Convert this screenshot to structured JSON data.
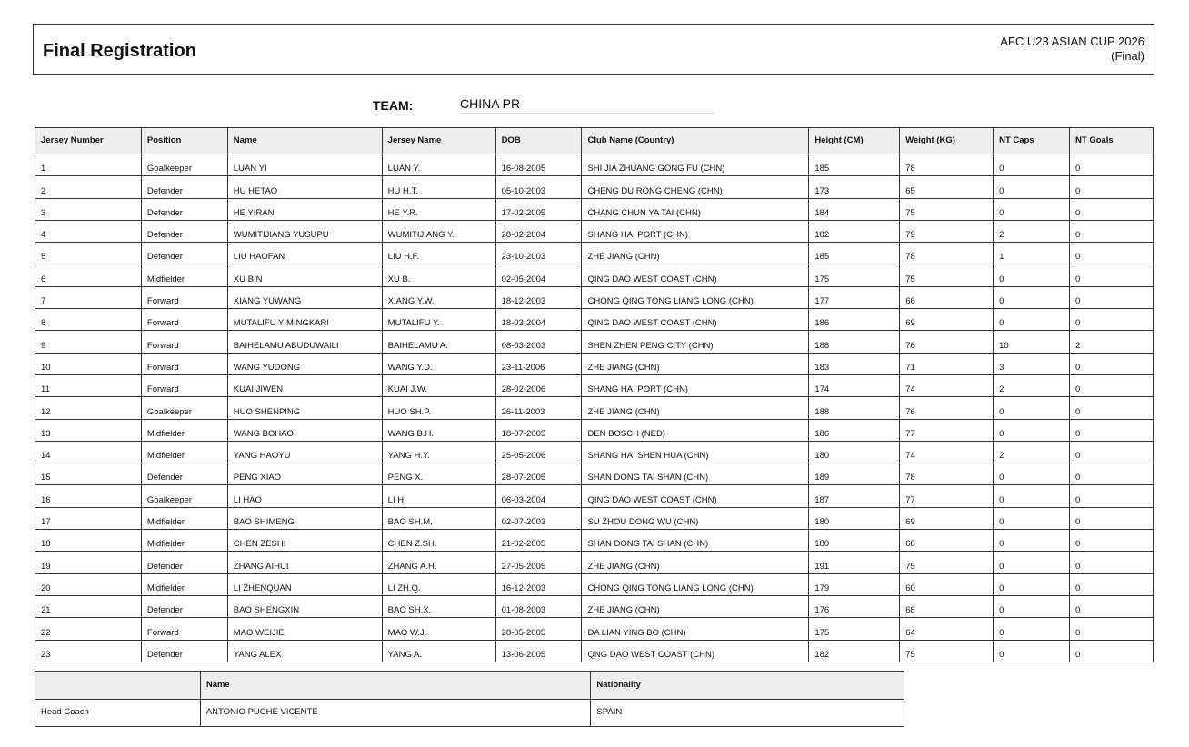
{
  "header": {
    "title": "Final Registration",
    "competition": "AFC U23 ASIAN CUP 2026",
    "stage": "(Final)"
  },
  "team": {
    "label": "TEAM:",
    "value": "CHINA PR"
  },
  "players": {
    "columns": [
      "Jersey Number",
      "Position",
      "Name",
      "Jersey Name",
      "DOB",
      "Club Name (Country)",
      "Height (CM)",
      "Weight (KG)",
      "NT Caps",
      "NT Goals"
    ],
    "rows": [
      [
        "1",
        "Goalkeeper",
        "LUAN YI",
        "LUAN Y.",
        "16-08-2005",
        "SHI JIA ZHUANG GONG FU (CHN)",
        "185",
        "78",
        "0",
        "0"
      ],
      [
        "2",
        "Defender",
        "HU HETAO",
        "HU H.T.",
        "05-10-2003",
        "CHENG DU RONG CHENG (CHN)",
        "173",
        "65",
        "0",
        "0"
      ],
      [
        "3",
        "Defender",
        "HE YIRAN",
        "HE Y.R.",
        "17-02-2005",
        "CHANG CHUN YA TAI (CHN)",
        "184",
        "75",
        "0",
        "0"
      ],
      [
        "4",
        "Defender",
        "WUMITIJIANG YUSUPU",
        "WUMITIJIANG Y.",
        "28-02-2004",
        "SHANG HAI PORT (CHN)",
        "182",
        "79",
        "2",
        "0"
      ],
      [
        "5",
        "Defender",
        "LIU HAOFAN",
        "LIU H.F.",
        "23-10-2003",
        "ZHE JIANG (CHN)",
        "185",
        "78",
        "1",
        "0"
      ],
      [
        "6",
        "Midfielder",
        "XU BIN",
        "XU B.",
        "02-05-2004",
        "QING DAO WEST COAST (CHN)",
        "175",
        "75",
        "0",
        "0"
      ],
      [
        "7",
        "Forward",
        "XIANG YUWANG",
        "XIANG Y.W.",
        "18-12-2003",
        "CHONG QING TONG LIANG LONG (CHN)",
        "177",
        "66",
        "0",
        "0"
      ],
      [
        "8",
        "Forward",
        "MUTALIFU YIMINGKARI",
        "MUTALIFU Y.",
        "18-03-2004",
        "QING DAO WEST COAST (CHN)",
        "186",
        "69",
        "0",
        "0"
      ],
      [
        "9",
        "Forward",
        "BAIHELAMU ABUDUWAILI",
        "BAIHELAMU A.",
        "08-03-2003",
        "SHEN ZHEN PENG CITY (CHN)",
        "188",
        "76",
        "10",
        "2"
      ],
      [
        "10",
        "Forward",
        "WANG YUDONG",
        "WANG Y.D.",
        "23-11-2006",
        "ZHE JIANG (CHN)",
        "183",
        "71",
        "3",
        "0"
      ],
      [
        "11",
        "Forward",
        "KUAI JIWEN",
        "KUAI J.W.",
        "28-02-2006",
        "SHANG HAI PORT (CHN)",
        "174",
        "74",
        "2",
        "0"
      ],
      [
        "12",
        "Goalkeeper",
        "HUO SHENPING",
        "HUO SH.P.",
        "26-11-2003",
        "ZHE JIANG (CHN)",
        "188",
        "76",
        "0",
        "0"
      ],
      [
        "13",
        "Midfielder",
        "WANG BOHAO",
        "WANG B.H.",
        "18-07-2005",
        "DEN BOSCH (NED)",
        "186",
        "77",
        "0",
        "0"
      ],
      [
        "14",
        "Midfielder",
        "YANG HAOYU",
        "YANG H.Y.",
        "25-05-2006",
        "SHANG HAI SHEN HUA (CHN)",
        "180",
        "74",
        "2",
        "0"
      ],
      [
        "15",
        "Defender",
        "PENG XIAO",
        "PENG X.",
        "28-07-2005",
        "SHAN DONG TAI SHAN (CHN)",
        "189",
        "78",
        "0",
        "0"
      ],
      [
        "16",
        "Goalkeeper",
        "LI HAO",
        "LI H.",
        "06-03-2004",
        "QING DAO WEST COAST (CHN)",
        "187",
        "77",
        "0",
        "0"
      ],
      [
        "17",
        "Midfielder",
        "BAO SHIMENG",
        "BAO SH.M.",
        "02-07-2003",
        "SU ZHOU DONG WU (CHN)",
        "180",
        "69",
        "0",
        "0"
      ],
      [
        "18",
        "Midfielder",
        "CHEN ZESHI",
        "CHEN Z.SH.",
        "21-02-2005",
        "SHAN DONG TAI SHAN (CHN)",
        "180",
        "68",
        "0",
        "0"
      ],
      [
        "19",
        "Defender",
        "ZHANG AIHUI",
        "ZHANG A.H.",
        "27-05-2005",
        "ZHE JIANG (CHN)",
        "191",
        "75",
        "0",
        "0"
      ],
      [
        "20",
        "Midfielder",
        "LI ZHENQUAN",
        "LI ZH.Q.",
        "16-12-2003",
        "CHONG QING TONG LIANG LONG (CHN)",
        "179",
        "60",
        "0",
        "0"
      ],
      [
        "21",
        "Defender",
        "BAO SHENGXIN",
        "BAO SH.X.",
        "01-08-2003",
        "ZHE JIANG (CHN)",
        "176",
        "68",
        "0",
        "0"
      ],
      [
        "22",
        "Forward",
        "MAO WEIJIE",
        "MAO W.J.",
        "28-05-2005",
        "DA LIAN YING BO (CHN)",
        "175",
        "64",
        "0",
        "0"
      ],
      [
        "23",
        "Defender",
        "YANG ALEX",
        "YANG A.",
        "13-06-2005",
        "QNG DAO WEST COAST (CHN)",
        "182",
        "75",
        "0",
        "0"
      ]
    ]
  },
  "officials": {
    "columns": [
      "",
      "Name",
      "Nationality"
    ],
    "rows": [
      [
        "Head Coach",
        "ANTONIO PUCHE VICENTE",
        "SPAIN"
      ]
    ]
  }
}
